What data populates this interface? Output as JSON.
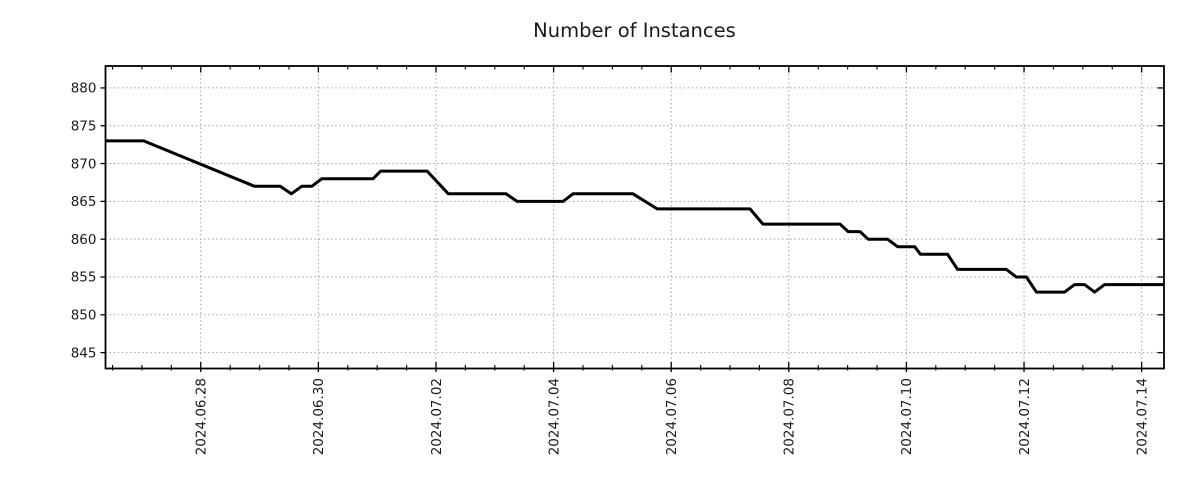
{
  "title": "Number of Instances",
  "style": {
    "background": "#ffffff",
    "line_color": "#000000",
    "grid_color": "#a0a0a0",
    "spine_color": "#000000",
    "text_color": "#1a1a1a"
  },
  "chart_data": {
    "type": "line",
    "title": "Number of Instances",
    "xlabel": "",
    "ylabel": "",
    "legend": "none",
    "grid": "dotted gridlines at major ticks, both axes",
    "x_unit": "days since 2024-06-26 00:00",
    "x_range": [
      0.38,
      18.38
    ],
    "y_range": [
      842.9,
      882.9
    ],
    "y_ticks": [
      845,
      850,
      855,
      860,
      865,
      870,
      875,
      880
    ],
    "x_major_ticks": [
      {
        "t": 2,
        "label": "2024.06.28"
      },
      {
        "t": 4,
        "label": "2024.06.30"
      },
      {
        "t": 6,
        "label": "2024.07.02"
      },
      {
        "t": 8,
        "label": "2024.07.04"
      },
      {
        "t": 10,
        "label": "2024.07.06"
      },
      {
        "t": 12,
        "label": "2024.07.08"
      },
      {
        "t": 14,
        "label": "2024.07.10"
      },
      {
        "t": 16,
        "label": "2024.07.12"
      },
      {
        "t": 18,
        "label": "2024.07.14"
      }
    ],
    "x_minor_step": 0.5,
    "series": [
      {
        "name": "instances",
        "color": "#000000",
        "width": 3,
        "points": [
          [
            0.38,
            873
          ],
          [
            1.03,
            873
          ],
          [
            2.91,
            867
          ],
          [
            3.35,
            867
          ],
          [
            3.54,
            866
          ],
          [
            3.72,
            867
          ],
          [
            3.89,
            867
          ],
          [
            4.06,
            868
          ],
          [
            4.93,
            868
          ],
          [
            5.06,
            869
          ],
          [
            5.85,
            869
          ],
          [
            6.21,
            866
          ],
          [
            7.19,
            866
          ],
          [
            7.38,
            865
          ],
          [
            8.16,
            865
          ],
          [
            8.33,
            866
          ],
          [
            9.35,
            866
          ],
          [
            9.76,
            864
          ],
          [
            11.34,
            864
          ],
          [
            11.56,
            862
          ],
          [
            12.87,
            862
          ],
          [
            13.01,
            861
          ],
          [
            13.21,
            861
          ],
          [
            13.35,
            860
          ],
          [
            13.68,
            860
          ],
          [
            13.85,
            859
          ],
          [
            14.14,
            859
          ],
          [
            14.24,
            858
          ],
          [
            14.7,
            858
          ],
          [
            14.87,
            856
          ],
          [
            15.7,
            856
          ],
          [
            15.87,
            855
          ],
          [
            16.04,
            855
          ],
          [
            16.21,
            853
          ],
          [
            16.69,
            853
          ],
          [
            16.86,
            854
          ],
          [
            17.03,
            854
          ],
          [
            17.2,
            853
          ],
          [
            17.37,
            854
          ],
          [
            18.38,
            854
          ]
        ]
      }
    ]
  }
}
